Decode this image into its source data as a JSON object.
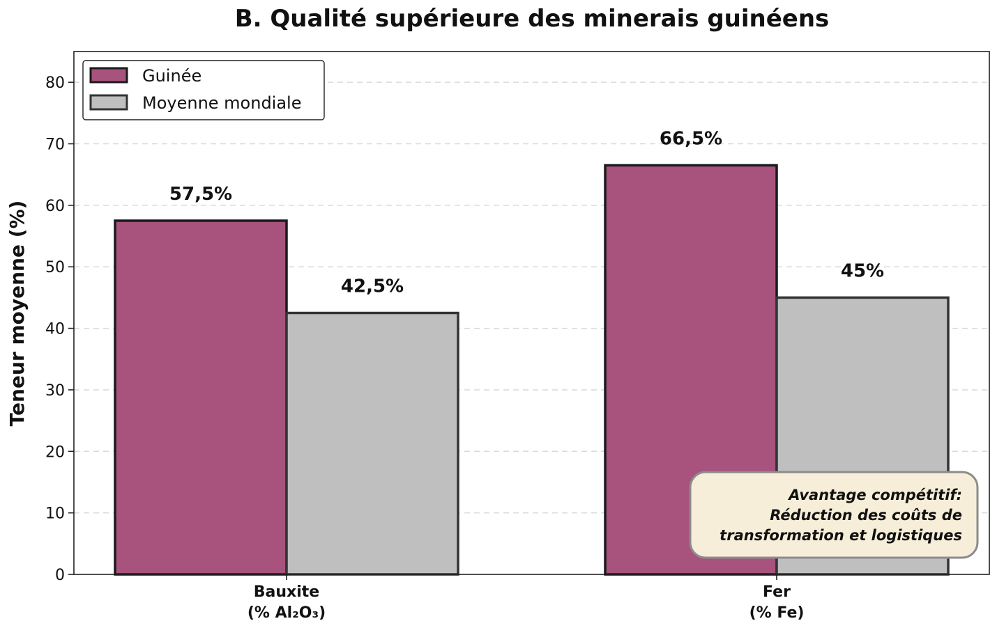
{
  "chart_data": {
    "type": "bar",
    "title": "B. Qualité supérieure des minerais guinéens",
    "xlabel": "",
    "ylabel": "Teneur moyenne (%)",
    "ylim": [
      0,
      85
    ],
    "yticks": [
      0,
      10,
      20,
      30,
      40,
      50,
      60,
      70,
      80
    ],
    "grid": true,
    "legend_position": "top-left",
    "categories": [
      [
        "Bauxite",
        "(% Al₂O₃)"
      ],
      [
        "Fer",
        "(% Fe)"
      ]
    ],
    "series": [
      {
        "name": "Guinée",
        "values": [
          57.5,
          66.5
        ],
        "labels": [
          "57,5%",
          "66,5%"
        ],
        "color": "#a8527e"
      },
      {
        "name": "Moyenne mondiale",
        "values": [
          42.5,
          45
        ],
        "labels": [
          "42,5%",
          "45%"
        ],
        "color": "#bfbfbf"
      }
    ],
    "annotation": [
      "Avantage compétitif:",
      "Réduction des coûts de",
      "transformation et logistiques"
    ]
  }
}
